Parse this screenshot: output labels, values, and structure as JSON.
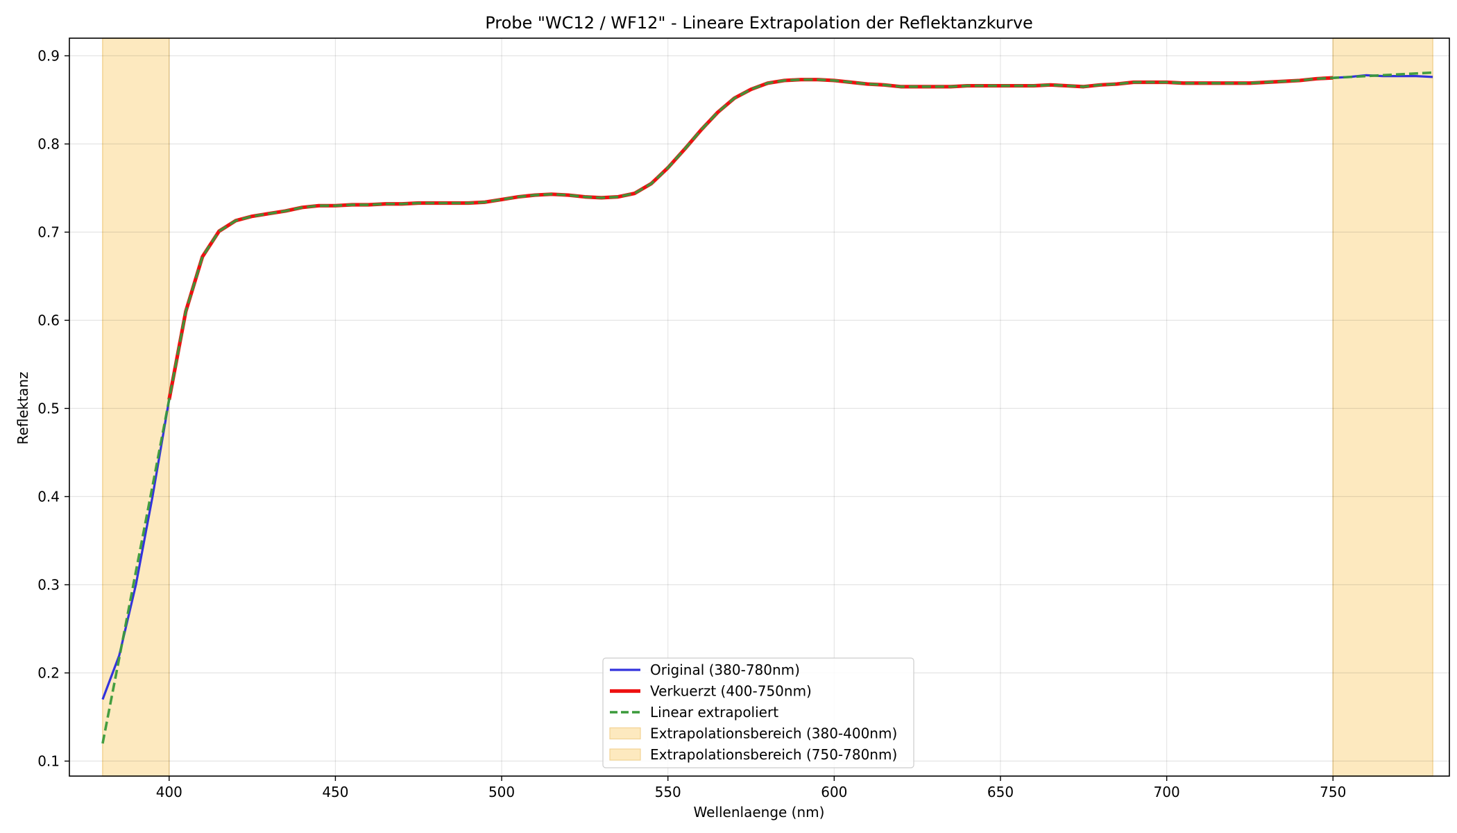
{
  "chart_data": {
    "type": "line",
    "title": "Probe \"WC12 / WF12\" - Lineare Extrapolation der Reflektanzkurve",
    "xlabel": "Wellenlaenge (nm)",
    "ylabel": "Reflektanz",
    "xlim": [
      370,
      785
    ],
    "ylim": [
      0.083,
      0.92
    ],
    "xticks": [
      400,
      450,
      500,
      550,
      600,
      650,
      700,
      750
    ],
    "yticks": [
      0.1,
      0.2,
      0.3,
      0.4,
      0.5,
      0.6,
      0.7,
      0.8,
      0.9
    ],
    "grid": true,
    "legend_position": "lower-center",
    "shaded_regions": [
      {
        "name": "Extrapolationsbereich (380-400nm)",
        "x_range": [
          380,
          400
        ],
        "color": "#fde9bf",
        "edge_color": "#f2d393"
      },
      {
        "name": "Extrapolationsbereich (750-780nm)",
        "x_range": [
          750,
          780
        ],
        "color": "#fde9bf",
        "edge_color": "#f2d393"
      }
    ],
    "series": [
      {
        "name": "Original (380-780nm)",
        "color": "#3333dd",
        "style": "solid",
        "x": [
          380,
          385,
          390,
          395,
          400,
          405,
          410,
          415,
          420,
          425,
          430,
          435,
          440,
          445,
          450,
          455,
          460,
          465,
          470,
          475,
          480,
          485,
          490,
          495,
          500,
          505,
          510,
          515,
          520,
          525,
          530,
          535,
          540,
          545,
          550,
          555,
          560,
          565,
          570,
          575,
          580,
          585,
          590,
          595,
          600,
          605,
          610,
          615,
          620,
          625,
          630,
          635,
          640,
          645,
          650,
          655,
          660,
          665,
          670,
          675,
          680,
          685,
          690,
          695,
          700,
          705,
          710,
          715,
          720,
          725,
          730,
          735,
          740,
          745,
          750,
          755,
          760,
          765,
          770,
          775,
          780
        ],
        "y": [
          0.17,
          0.22,
          0.3,
          0.4,
          0.51,
          0.61,
          0.672,
          0.701,
          0.713,
          0.718,
          0.721,
          0.724,
          0.728,
          0.73,
          0.73,
          0.731,
          0.731,
          0.732,
          0.732,
          0.733,
          0.733,
          0.733,
          0.733,
          0.734,
          0.737,
          0.74,
          0.742,
          0.743,
          0.742,
          0.74,
          0.739,
          0.74,
          0.744,
          0.755,
          0.773,
          0.794,
          0.816,
          0.836,
          0.852,
          0.862,
          0.869,
          0.872,
          0.873,
          0.873,
          0.872,
          0.87,
          0.868,
          0.867,
          0.865,
          0.865,
          0.865,
          0.865,
          0.866,
          0.866,
          0.866,
          0.866,
          0.866,
          0.867,
          0.866,
          0.865,
          0.867,
          0.868,
          0.87,
          0.87,
          0.87,
          0.869,
          0.869,
          0.869,
          0.869,
          0.869,
          0.87,
          0.871,
          0.872,
          0.874,
          0.875,
          0.876,
          0.878,
          0.877,
          0.877,
          0.877,
          0.876
        ]
      },
      {
        "name": "Verkuerzt (400-750nm)",
        "color": "#ee1111",
        "style": "solid-thick",
        "x": [
          400,
          405,
          410,
          415,
          420,
          425,
          430,
          435,
          440,
          445,
          450,
          455,
          460,
          465,
          470,
          475,
          480,
          485,
          490,
          495,
          500,
          505,
          510,
          515,
          520,
          525,
          530,
          535,
          540,
          545,
          550,
          555,
          560,
          565,
          570,
          575,
          580,
          585,
          590,
          595,
          600,
          605,
          610,
          615,
          620,
          625,
          630,
          635,
          640,
          645,
          650,
          655,
          660,
          665,
          670,
          675,
          680,
          685,
          690,
          695,
          700,
          705,
          710,
          715,
          720,
          725,
          730,
          735,
          740,
          745,
          750
        ],
        "y": [
          0.51,
          0.61,
          0.672,
          0.701,
          0.713,
          0.718,
          0.721,
          0.724,
          0.728,
          0.73,
          0.73,
          0.731,
          0.731,
          0.732,
          0.732,
          0.733,
          0.733,
          0.733,
          0.733,
          0.734,
          0.737,
          0.74,
          0.742,
          0.743,
          0.742,
          0.74,
          0.739,
          0.74,
          0.744,
          0.755,
          0.773,
          0.794,
          0.816,
          0.836,
          0.852,
          0.862,
          0.869,
          0.872,
          0.873,
          0.873,
          0.872,
          0.87,
          0.868,
          0.867,
          0.865,
          0.865,
          0.865,
          0.865,
          0.866,
          0.866,
          0.866,
          0.866,
          0.866,
          0.867,
          0.866,
          0.865,
          0.867,
          0.868,
          0.87,
          0.87,
          0.87,
          0.869,
          0.869,
          0.869,
          0.869,
          0.869,
          0.87,
          0.871,
          0.872,
          0.874,
          0.875
        ]
      },
      {
        "name": "Linear extrapoliert",
        "color": "#3a9a3a",
        "style": "dashed",
        "x": [
          380,
          385,
          390,
          395,
          400,
          405,
          410,
          415,
          420,
          425,
          430,
          435,
          440,
          445,
          450,
          455,
          460,
          465,
          470,
          475,
          480,
          485,
          490,
          495,
          500,
          505,
          510,
          515,
          520,
          525,
          530,
          535,
          540,
          545,
          550,
          555,
          560,
          565,
          570,
          575,
          580,
          585,
          590,
          595,
          600,
          605,
          610,
          615,
          620,
          625,
          630,
          635,
          640,
          645,
          650,
          655,
          660,
          665,
          670,
          675,
          680,
          685,
          690,
          695,
          700,
          705,
          710,
          715,
          720,
          725,
          730,
          735,
          740,
          745,
          750,
          755,
          760,
          765,
          770,
          775,
          780
        ],
        "y": [
          0.12,
          0.217,
          0.315,
          0.412,
          0.51,
          0.61,
          0.672,
          0.701,
          0.713,
          0.718,
          0.721,
          0.724,
          0.728,
          0.73,
          0.73,
          0.731,
          0.731,
          0.732,
          0.732,
          0.733,
          0.733,
          0.733,
          0.733,
          0.734,
          0.737,
          0.74,
          0.742,
          0.743,
          0.742,
          0.74,
          0.739,
          0.74,
          0.744,
          0.755,
          0.773,
          0.794,
          0.816,
          0.836,
          0.852,
          0.862,
          0.869,
          0.872,
          0.873,
          0.873,
          0.872,
          0.87,
          0.868,
          0.867,
          0.865,
          0.865,
          0.865,
          0.865,
          0.866,
          0.866,
          0.866,
          0.866,
          0.866,
          0.867,
          0.866,
          0.865,
          0.867,
          0.868,
          0.87,
          0.87,
          0.87,
          0.869,
          0.869,
          0.869,
          0.869,
          0.869,
          0.87,
          0.871,
          0.872,
          0.874,
          0.875,
          0.876,
          0.877,
          0.878,
          0.879,
          0.88,
          0.881
        ]
      }
    ],
    "legend": [
      {
        "label": "Original (380-780nm)",
        "kind": "line",
        "series": 0
      },
      {
        "label": "Verkuerzt (400-750nm)",
        "kind": "line",
        "series": 1
      },
      {
        "label": "Linear extrapoliert",
        "kind": "line",
        "series": 2
      },
      {
        "label": "Extrapolationsbereich (380-400nm)",
        "kind": "patch",
        "region": 0
      },
      {
        "label": "Extrapolationsbereich (750-780nm)",
        "kind": "patch",
        "region": 1
      }
    ]
  }
}
